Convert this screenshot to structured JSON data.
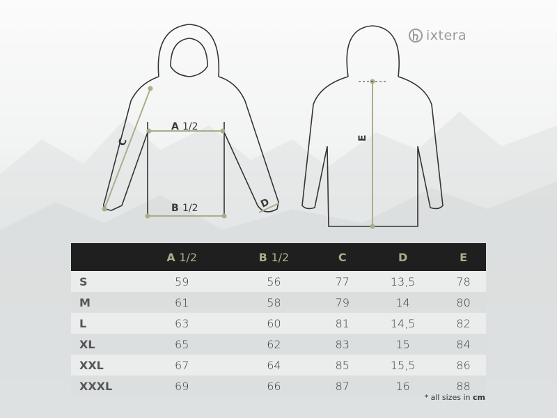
{
  "brand": {
    "logo_text": "ixtera"
  },
  "diagram": {
    "labels": {
      "a": "A",
      "a_frac": "1/2",
      "b": "B",
      "b_frac": "1/2",
      "c": "C",
      "d": "D",
      "e": "E"
    },
    "accent_color": "#a9ae8a"
  },
  "table": {
    "headers": [
      {
        "letter": "A",
        "frac": "1/2"
      },
      {
        "letter": "B",
        "frac": "1/2"
      },
      {
        "letter": "C",
        "frac": ""
      },
      {
        "letter": "D",
        "frac": ""
      },
      {
        "letter": "E",
        "frac": ""
      }
    ],
    "rows": [
      {
        "size": "S",
        "values": [
          "59",
          "56",
          "77",
          "13,5",
          "78"
        ]
      },
      {
        "size": "M",
        "values": [
          "61",
          "58",
          "79",
          "14",
          "80"
        ]
      },
      {
        "size": "L",
        "values": [
          "63",
          "60",
          "81",
          "14,5",
          "82"
        ]
      },
      {
        "size": "XL",
        "values": [
          "65",
          "62",
          "83",
          "15",
          "84"
        ]
      },
      {
        "size": "XXL",
        "values": [
          "67",
          "64",
          "85",
          "15,5",
          "86"
        ]
      },
      {
        "size": "XXXL",
        "values": [
          "69",
          "66",
          "87",
          "16",
          "88"
        ]
      }
    ]
  },
  "footnote": {
    "text": "* all sizes in",
    "unit": "cm"
  }
}
